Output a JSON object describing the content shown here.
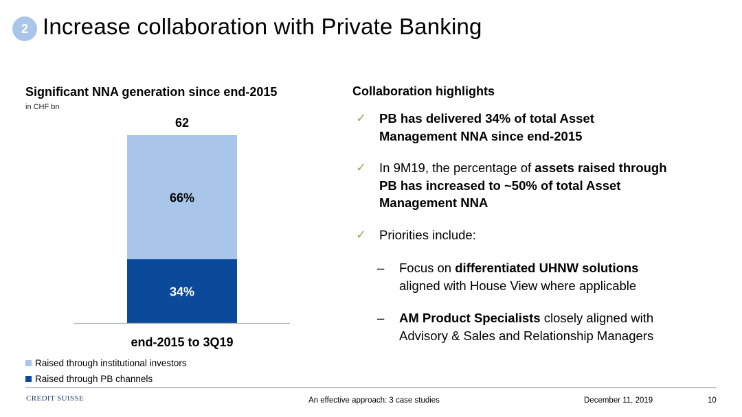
{
  "header": {
    "badge": "2",
    "title": "Increase collaboration with Private Banking"
  },
  "chart": {
    "title": "Significant NNA generation since end-2015",
    "unit": "in CHF bn",
    "legend": [
      {
        "label": "Raised through institutional investors",
        "color": "#a9c6ea"
      },
      {
        "label": "Raised through PB channels",
        "color": "#0b4a9a"
      }
    ]
  },
  "chart_data": {
    "type": "bar",
    "stacked": true,
    "categories": [
      "end-2015 to 3Q19"
    ],
    "total": 62,
    "series": [
      {
        "name": "Raised through PB channels",
        "values": [
          34
        ],
        "label": "34%",
        "color": "#0b4a9a"
      },
      {
        "name": "Raised through institutional investors",
        "values": [
          66
        ],
        "label": "66%",
        "color": "#a9c6ea"
      }
    ],
    "total_label": "62"
  },
  "highlights": {
    "title": "Collaboration highlights",
    "b1": {
      "l1": "PB has delivered 34% of total Asset",
      "l2": "Management NNA since end-2015"
    },
    "b2": {
      "l1a": "In 9M19, the percentage of ",
      "l1b": "assets raised through",
      "l2": "PB has increased to ~50% of total Asset",
      "l3": "Management NNA"
    },
    "b3": {
      "l1": "Priorities include:"
    },
    "s1": {
      "l1a": "Focus on ",
      "l1b": "differentiated UHNW solutions",
      "l2": "aligned with House View where applicable"
    },
    "s2": {
      "l1a": "AM Product Specialists",
      "l1b": " closely aligned with",
      "l2": "Advisory & Sales and Relationship Managers"
    },
    "check": "✓",
    "dash": "–"
  },
  "footer": {
    "logo": "CREDIT SUISSE",
    "center": "An effective approach: 3 case studies",
    "date": "December 11, 2019",
    "page": "10"
  }
}
